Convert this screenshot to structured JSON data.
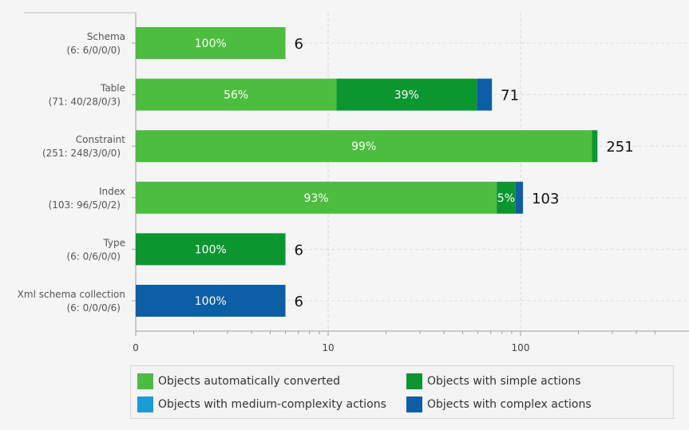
{
  "chart_data": {
    "type": "bar",
    "orientation": "horizontal",
    "stacked": true,
    "x_scale": "log",
    "x_ticks": [
      {
        "value": 1,
        "label": "0"
      },
      {
        "value": 10,
        "label": "10"
      },
      {
        "value": 100,
        "label": "100"
      }
    ],
    "xlim": [
      1,
      500
    ],
    "categories": [
      {
        "name": "Schema",
        "detail": "(6: 6/0/0/0)",
        "total": 6,
        "values": [
          6,
          0,
          0,
          0
        ],
        "labels": [
          "100%",
          "",
          "",
          ""
        ]
      },
      {
        "name": "Table",
        "detail": "(71: 40/28/0/3)",
        "total": 71,
        "values": [
          40,
          28,
          0,
          3
        ],
        "labels": [
          "56%",
          "39%",
          "",
          ""
        ]
      },
      {
        "name": "Constraint",
        "detail": "(251: 248/3/0/0)",
        "total": 251,
        "values": [
          248,
          3,
          0,
          0
        ],
        "labels": [
          "99%",
          "",
          "",
          ""
        ]
      },
      {
        "name": "Index",
        "detail": "(103: 96/5/0/2)",
        "total": 103,
        "values": [
          96,
          5,
          0,
          2
        ],
        "labels": [
          "93%",
          "5%",
          "",
          ""
        ]
      },
      {
        "name": "Type",
        "detail": "(6: 0/6/0/0)",
        "total": 6,
        "values": [
          0,
          6,
          0,
          0
        ],
        "labels": [
          "",
          "100%",
          "",
          ""
        ]
      },
      {
        "name": "Xml schema collection",
        "detail": "(6: 0/0/0/6)",
        "total": 6,
        "values": [
          0,
          0,
          0,
          6
        ],
        "labels": [
          "",
          "",
          "",
          "100%"
        ]
      }
    ],
    "series": [
      {
        "name": "Objects automatically converted",
        "color": "#4cbd3f"
      },
      {
        "name": "Objects with simple actions",
        "color": "#0b9630"
      },
      {
        "name": "Objects with medium-complexity actions",
        "color": "#1a9ad8"
      },
      {
        "name": "Objects with complex actions",
        "color": "#0c5fa5"
      }
    ],
    "grid": true,
    "legend_position": "bottom"
  }
}
